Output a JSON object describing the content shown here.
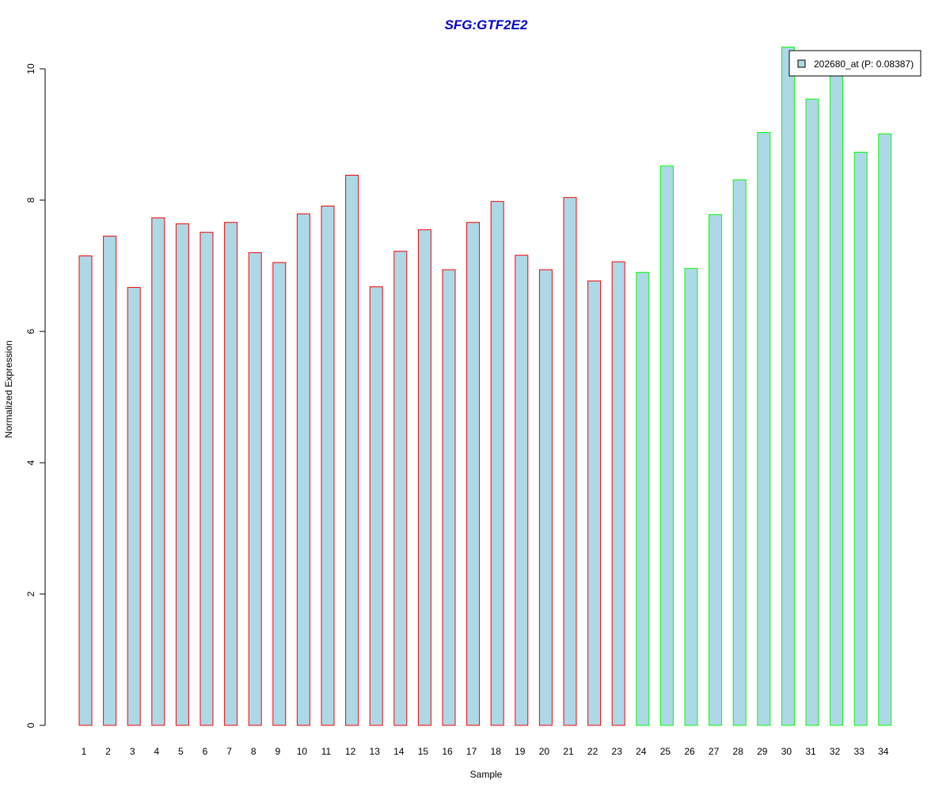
{
  "chart_data": {
    "type": "bar",
    "title": "SFG:GTF2E2",
    "xlabel": "Sample",
    "ylabel": "Normalized Expression",
    "ylim": [
      0,
      10.5
    ],
    "yticks": [
      0,
      2,
      4,
      6,
      8,
      10
    ],
    "grid": false,
    "legend": {
      "placement": "top-right",
      "label": "202680_at (P: 0.08387)"
    },
    "categories": [
      "1",
      "2",
      "3",
      "4",
      "5",
      "6",
      "7",
      "8",
      "9",
      "10",
      "11",
      "12",
      "13",
      "14",
      "15",
      "16",
      "17",
      "18",
      "19",
      "20",
      "21",
      "22",
      "23",
      "24",
      "25",
      "26",
      "27",
      "28",
      "29",
      "30",
      "31",
      "32",
      "33",
      "34"
    ],
    "values": [
      7.15,
      7.45,
      6.67,
      7.73,
      7.64,
      7.51,
      7.66,
      7.2,
      7.05,
      7.79,
      7.91,
      8.38,
      6.68,
      7.22,
      7.55,
      6.94,
      7.66,
      7.98,
      7.16,
      6.94,
      8.04,
      6.77,
      7.06,
      6.9,
      8.52,
      6.96,
      7.78,
      8.31,
      9.03,
      10.33,
      9.54,
      9.95,
      8.73,
      9.01
    ],
    "fill_color": "#add8e6",
    "group_colors": [
      "#ff0000",
      "#00ff00"
    ],
    "groups": [
      0,
      0,
      0,
      0,
      0,
      0,
      0,
      0,
      0,
      0,
      0,
      0,
      0,
      0,
      0,
      0,
      0,
      0,
      0,
      0,
      0,
      0,
      0,
      1,
      1,
      1,
      1,
      1,
      1,
      1,
      1,
      1,
      1,
      1
    ],
    "title_color": "#0000cc"
  }
}
